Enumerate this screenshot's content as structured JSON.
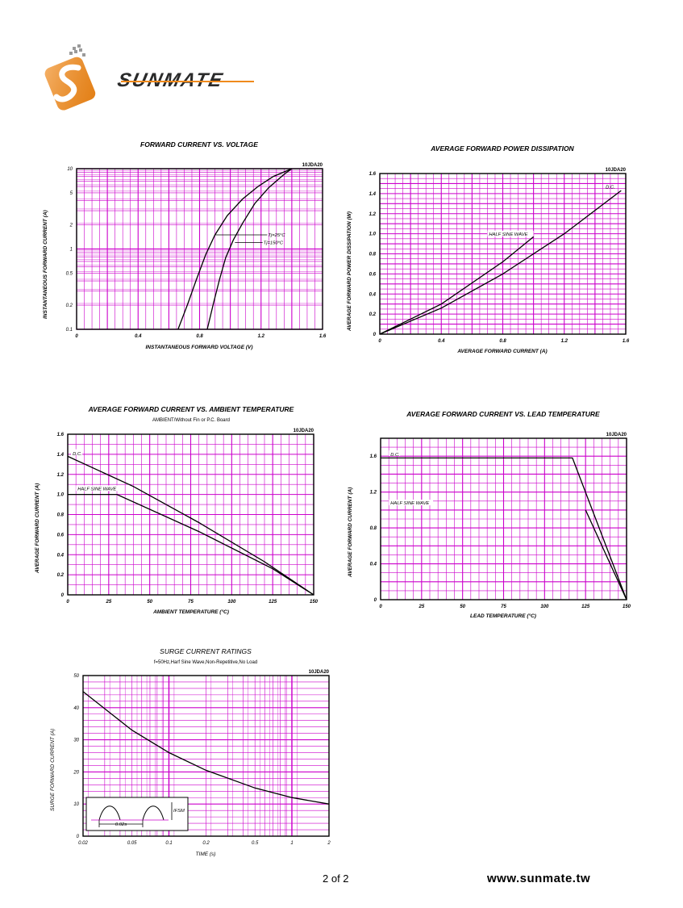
{
  "brand": {
    "logo_text": "SUNMATE",
    "color_orange": "#f08a1c",
    "color_dark": "#2a2a2a"
  },
  "footer": {
    "page": "2 of 2",
    "url": "www.sunmate.tw"
  },
  "colors": {
    "grid": "#cc00cc",
    "curve": "#000000"
  },
  "chart_data": [
    {
      "id": "fv",
      "type": "line",
      "title": "FORWARD CURRENT VS. VOLTAGE",
      "model": "10JDA20",
      "xlabel": "INSTANTANEOUS FORWARD VOLTAGE (V)",
      "ylabel": "INSTANTANEOUS FORWARD CURRENT (A)",
      "xlim": [
        0,
        1.6
      ],
      "ylim": [
        0.1,
        10
      ],
      "yscale": "log",
      "xticks": [
        "0",
        "0.4",
        "0.8",
        "1.2",
        "1.6"
      ],
      "yticks": [
        "0.1",
        "0.2",
        "0.5",
        "1",
        "2",
        "5",
        "10"
      ],
      "series": [
        {
          "name": "Tj=25°C",
          "x": [
            0.66,
            0.72,
            0.78,
            0.84,
            0.9,
            0.98,
            1.08,
            1.18,
            1.28,
            1.4
          ],
          "y": [
            0.1,
            0.2,
            0.42,
            0.85,
            1.5,
            2.6,
            4.2,
            6.0,
            8.0,
            10
          ]
        },
        {
          "name": "Tj=150°C",
          "x": [
            0.85,
            0.89,
            0.93,
            0.97,
            1.02,
            1.08,
            1.16,
            1.25,
            1.35,
            1.4
          ],
          "y": [
            0.1,
            0.21,
            0.42,
            0.78,
            1.3,
            2.1,
            3.7,
            5.8,
            8.5,
            10
          ]
        }
      ],
      "grid": true
    },
    {
      "id": "pd",
      "type": "line",
      "title": "AVERAGE FORWARD POWER DISSIPATION",
      "model": "10JDA20",
      "xlabel": "AVERAGE FORWARD CURRENT (A)",
      "ylabel": "AVERAGE FORWARD POWER DISSIPATION (W)",
      "xlim": [
        0,
        1.6
      ],
      "ylim": [
        0,
        1.6
      ],
      "xticks": [
        "0",
        "0.4",
        "0.8",
        "1.2",
        "1.6"
      ],
      "yticks": [
        "0",
        "0.2",
        "0.4",
        "0.6",
        "0.8",
        "1.0",
        "1.2",
        "1.4",
        "1.6"
      ],
      "series": [
        {
          "name": "D.C.",
          "x": [
            0,
            0.4,
            0.8,
            1.2,
            1.57
          ],
          "y": [
            0,
            0.26,
            0.6,
            1.0,
            1.43
          ]
        },
        {
          "name": "HALF SINE WAVE",
          "x": [
            0,
            0.4,
            0.8,
            1.0
          ],
          "y": [
            0,
            0.3,
            0.72,
            0.97
          ]
        }
      ],
      "grid": true
    },
    {
      "id": "ambient",
      "type": "line",
      "title": "AVERAGE FORWARD CURRENT VS. AMBIENT TEMPERATURE",
      "subtitle": "AMBIENT/Without Fin or P.C. Board",
      "model": "10JDA20",
      "xlabel": "AMBIENT TEMPERATURE (°C)",
      "ylabel": "AVERAGE FORWARD  CURRENT (A)",
      "xlim": [
        0,
        150
      ],
      "ylim": [
        0,
        1.6
      ],
      "xticks": [
        "0",
        "25",
        "50",
        "75",
        "100",
        "125",
        "150"
      ],
      "yticks": [
        "0",
        "0.2",
        "0.4",
        "0.6",
        "0.8",
        "1.0",
        "1.2",
        "1.4",
        "1.6"
      ],
      "series": [
        {
          "name": "D.C.",
          "x": [
            0,
            40,
            80,
            120,
            150
          ],
          "y": [
            1.38,
            1.08,
            0.72,
            0.33,
            0
          ]
        },
        {
          "name": "HALF SINE WAVE",
          "x": [
            0,
            30,
            80,
            125,
            150
          ],
          "y": [
            1.0,
            1.0,
            0.63,
            0.26,
            0
          ]
        }
      ],
      "grid": true
    },
    {
      "id": "lead",
      "type": "line",
      "title": "AVERAGE FORWARD CURRENT VS. LEAD TEMPERATURE",
      "model": "10JDA20",
      "xlabel": "LEAD TEMPERATURE (°C)",
      "ylabel": "AVERAGE FORWARD  CURRENT (A)",
      "xlim": [
        0,
        150
      ],
      "ylim": [
        0,
        1.8
      ],
      "xticks": [
        "0",
        "25",
        "50",
        "75",
        "100",
        "125",
        "150"
      ],
      "yticks": [
        "0",
        "0.4",
        "0.8",
        "1.2",
        "1.6"
      ],
      "series": [
        {
          "name": "D.C.",
          "x": [
            0,
            117,
            150
          ],
          "y": [
            1.58,
            1.58,
            0
          ]
        },
        {
          "name": "HALF SINE WAVE",
          "x": [
            125,
            150
          ],
          "y": [
            1.0,
            0
          ]
        }
      ],
      "grid": true
    },
    {
      "id": "surge",
      "type": "line",
      "title": "SURGE CURRENT RATINGS",
      "subtitle": "f=50Hz,Harf Sine Wave,Non-Repetitive,No Load",
      "model": "10JDA20",
      "xlabel": "TIME (s)",
      "ylabel": "SURGE FORWARD CURRENT (A)",
      "xlim": [
        0.02,
        2
      ],
      "ylim": [
        0,
        50
      ],
      "xscale": "log",
      "xticks": [
        "0.02",
        "0.05",
        "0.1",
        "0.2",
        "0.5",
        "1",
        "2"
      ],
      "yticks": [
        "0",
        "10",
        "20",
        "30",
        "40",
        "50"
      ],
      "series": [
        {
          "name": "",
          "x": [
            0.02,
            0.05,
            0.1,
            0.2,
            0.5,
            1,
            2
          ],
          "y": [
            45,
            33,
            26,
            20.5,
            15,
            12,
            10
          ]
        }
      ],
      "inset": {
        "label_period": "0.02s",
        "label_ifsm": "IFSM"
      },
      "grid": true
    }
  ]
}
